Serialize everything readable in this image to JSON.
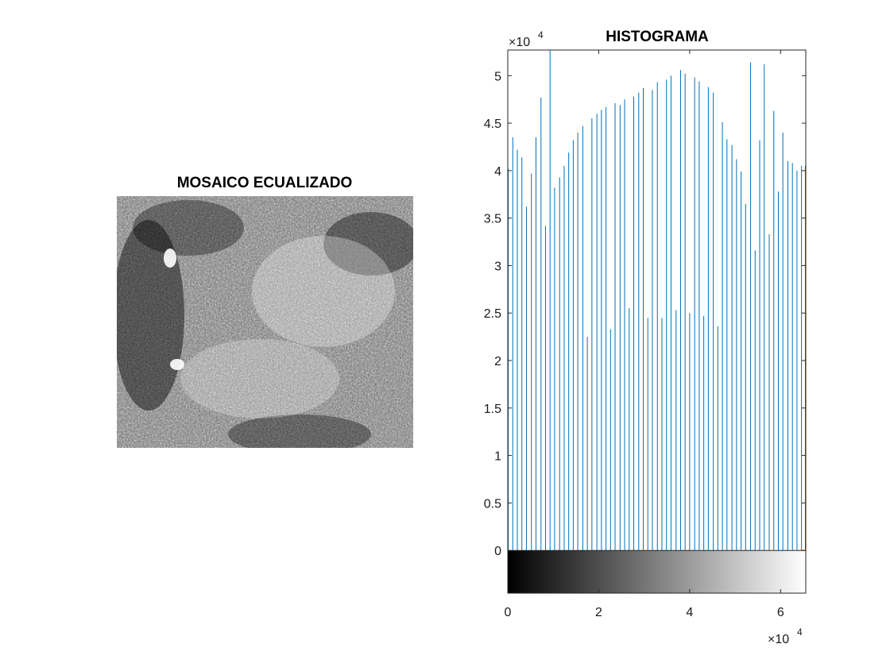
{
  "left_panel": {
    "title": "MOSAICO ECUALIZADO"
  },
  "right_panel": {
    "title": "HISTOGRAMA"
  },
  "colors": {
    "bars": "#0072BD",
    "axes": "#262626",
    "background": "#ffffff"
  },
  "chart_data": {
    "type": "bar",
    "title": "HISTOGRAMA",
    "xlabel": "",
    "ylabel": "",
    "x_exponent": "×10",
    "x_exponent_power": "4",
    "y_exponent": "×10",
    "y_exponent_power": "4",
    "xlim": [
      0,
      6.5536
    ],
    "ylim": [
      -0.45,
      5.27
    ],
    "x_ticks": [
      0,
      2,
      4,
      6
    ],
    "x_tick_labels": [
      "0",
      "2",
      "4",
      "6"
    ],
    "y_ticks": [
      0,
      0.5,
      1,
      1.5,
      2,
      2.5,
      3,
      3.5,
      4,
      4.5,
      5
    ],
    "y_tick_labels": [
      "0",
      "0.5",
      "1",
      "1.5",
      "2",
      "2.5",
      "3",
      "3.5",
      "4",
      "4.5",
      "5"
    ],
    "grid": false,
    "colorbar": "grayscale",
    "x": [
      0.01,
      0.11,
      0.21,
      0.31,
      0.41,
      0.52,
      0.62,
      0.73,
      0.83,
      0.93,
      1.03,
      1.14,
      1.24,
      1.34,
      1.44,
      1.54,
      1.65,
      1.75,
      1.85,
      1.96,
      2.06,
      2.16,
      2.26,
      2.36,
      2.47,
      2.57,
      2.67,
      2.77,
      2.88,
      2.98,
      3.08,
      3.18,
      3.29,
      3.39,
      3.49,
      3.59,
      3.7,
      3.8,
      3.9,
      4.0,
      4.11,
      4.21,
      4.31,
      4.41,
      4.52,
      4.62,
      4.72,
      4.82,
      4.93,
      5.03,
      5.13,
      5.23,
      5.34,
      5.44,
      5.54,
      5.64,
      5.75,
      5.85,
      5.95,
      6.05,
      6.16,
      6.26,
      6.36,
      6.46,
      6.55
    ],
    "values": [
      4.02,
      4.35,
      4.22,
      4.14,
      3.62,
      3.97,
      4.35,
      4.77,
      3.42,
      5.27,
      3.82,
      3.93,
      4.05,
      4.19,
      4.32,
      4.4,
      4.47,
      2.25,
      4.55,
      4.6,
      4.64,
      4.67,
      2.33,
      4.71,
      4.69,
      4.75,
      2.55,
      4.78,
      4.82,
      4.87,
      2.45,
      4.85,
      4.93,
      2.45,
      4.96,
      5.0,
      2.53,
      5.06,
      5.02,
      2.5,
      4.98,
      4.94,
      2.47,
      4.88,
      4.82,
      2.36,
      4.51,
      4.33,
      4.27,
      4.12,
      3.99,
      3.65,
      5.14,
      3.16,
      4.32,
      5.12,
      3.33,
      4.63,
      3.78,
      4.4,
      4.1,
      4.08,
      4.0,
      4.05,
      4.05
    ]
  }
}
